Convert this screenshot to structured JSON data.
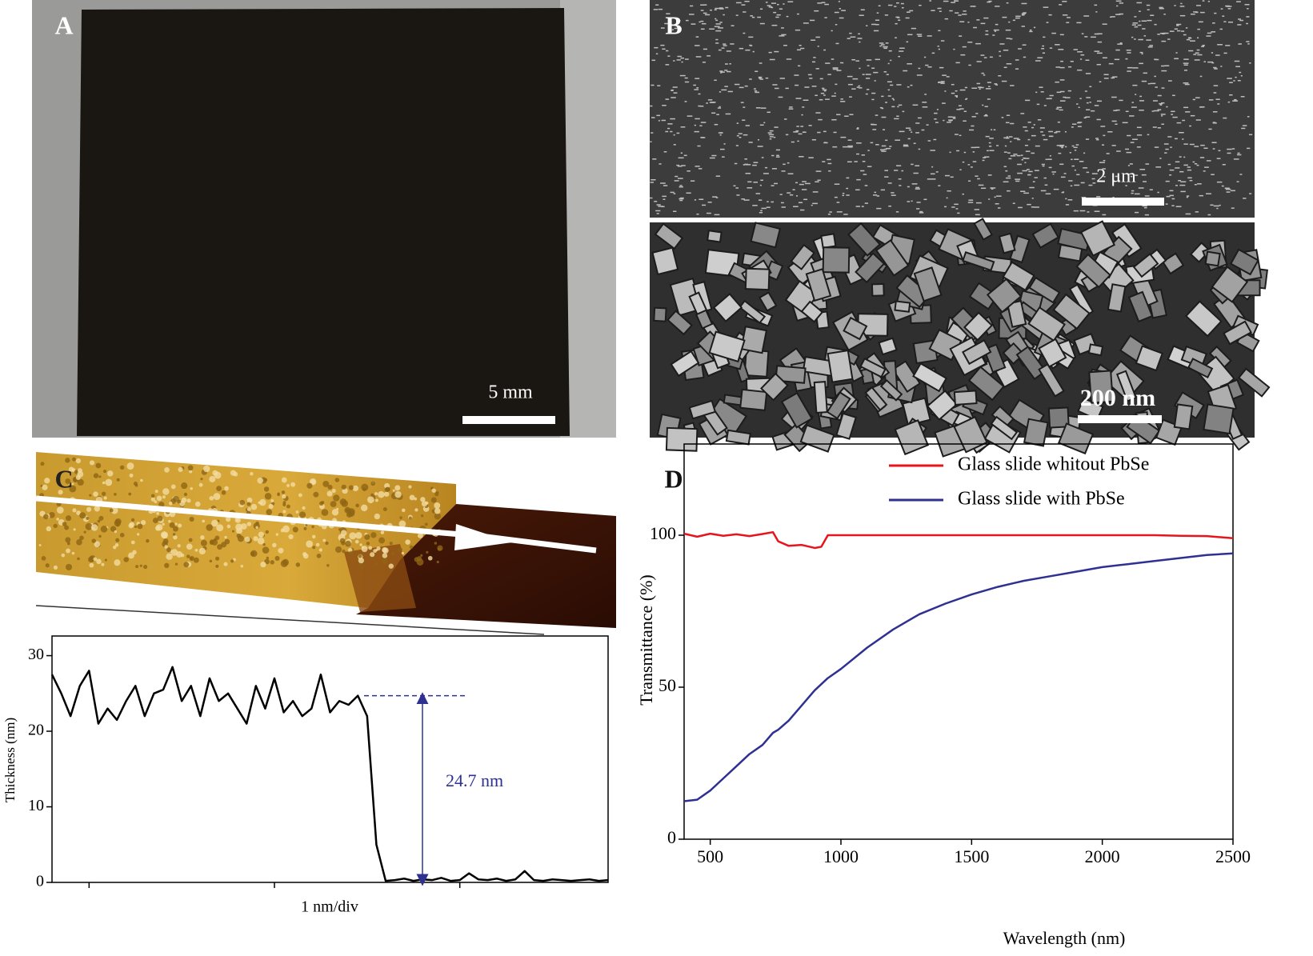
{
  "panels": {
    "A": {
      "label": "A",
      "scale_bar": "5 mm"
    },
    "B": {
      "label": "B",
      "scale_bar_top": "2 μm",
      "scale_bar_bottom": "200 nm"
    },
    "C": {
      "label": "C"
    },
    "D": {
      "label": "D"
    }
  },
  "chart_data": [
    {
      "type": "line",
      "xlabel": "1 nm/div",
      "ylabel": "Thickness (nm)",
      "x": [
        0,
        0.05,
        0.1,
        0.15,
        0.2,
        0.25,
        0.3,
        0.35,
        0.4,
        0.45,
        0.5,
        0.55,
        0.6,
        0.65,
        0.7,
        0.75,
        0.8,
        0.85,
        0.9,
        0.95,
        1.0,
        1.05,
        1.1,
        1.15,
        1.2,
        1.25,
        1.3,
        1.35,
        1.4,
        1.45,
        1.5,
        1.55,
        1.6,
        1.65,
        1.7,
        1.75,
        1.8,
        1.85,
        1.9,
        1.95,
        2.0,
        2.05,
        2.1,
        2.15,
        2.2,
        2.25,
        2.3,
        2.35,
        2.4,
        2.45,
        2.5,
        2.55,
        2.6,
        2.65,
        2.7,
        2.75,
        2.8,
        2.85,
        2.9,
        2.95,
        3.0
      ],
      "series": [
        {
          "color": "#000000",
          "values": [
            27.5,
            25,
            22,
            26,
            28,
            21,
            23,
            21.5,
            24,
            26,
            22,
            25,
            25.5,
            28.5,
            24,
            26,
            22,
            27,
            24,
            25,
            23,
            21,
            26,
            23,
            27,
            22.5,
            24,
            22,
            23,
            27.5,
            22.5,
            24,
            23.5,
            24.7,
            22,
            5,
            0.2,
            0.3,
            0.5,
            0.2,
            0.4,
            0.3,
            0.6,
            0.2,
            0.3,
            1.2,
            0.4,
            0.3,
            0.5,
            0.2,
            0.4,
            1.5,
            0.3,
            0.2,
            0.4,
            0.3,
            0.2,
            0.3,
            0.4,
            0.2,
            0.3
          ]
        }
      ],
      "xlim": [
        0,
        3.0
      ],
      "xticks": [
        0.2,
        1.2,
        2.2
      ],
      "ylim": [
        0,
        32.6
      ],
      "yticks": [
        0,
        10,
        20,
        30
      ],
      "annotation": {
        "text": "24.7 nm",
        "y": 24.7
      }
    },
    {
      "type": "line",
      "xlabel": "Wavelength (nm)",
      "ylabel": "Transmittance (%)",
      "legend": "upper right",
      "x": [
        400,
        450,
        500,
        550,
        600,
        650,
        700,
        740,
        760,
        800,
        850,
        900,
        925,
        950,
        1000,
        1100,
        1200,
        1300,
        1400,
        1500,
        1600,
        1700,
        1800,
        1900,
        2000,
        2100,
        2200,
        2300,
        2400,
        2500
      ],
      "series": [
        {
          "name": "Glass slide whitout PbSe",
          "color": "#e8141c",
          "values": [
            100.5,
            99.5,
            100.5,
            99.8,
            100.3,
            99.7,
            100.4,
            101,
            98,
            96.5,
            96.8,
            95.8,
            96.2,
            100,
            100,
            100,
            100,
            100,
            100,
            100,
            100,
            100,
            100,
            100,
            100,
            100,
            100,
            99.8,
            99.7,
            99
          ]
        },
        {
          "name": "Glass slide with PbSe",
          "color": "#2e3192",
          "values": [
            12.5,
            13,
            16,
            20,
            24,
            28,
            31,
            35,
            36,
            39,
            44,
            49,
            51,
            53,
            56,
            63,
            69,
            74,
            77.5,
            80.5,
            83,
            85,
            86.5,
            88,
            89.5,
            90.5,
            91.5,
            92.5,
            93.5,
            94
          ]
        }
      ],
      "xlim": [
        400,
        2500
      ],
      "xticks": [
        500,
        1000,
        1500,
        2000,
        2500
      ],
      "ylim": [
        0,
        130
      ],
      "yticks": [
        0,
        50,
        100
      ]
    }
  ]
}
